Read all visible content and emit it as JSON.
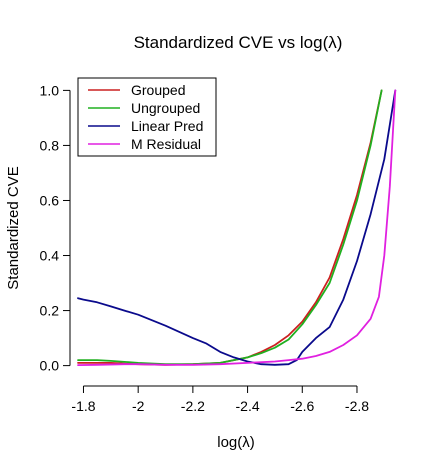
{
  "chart_data": {
    "type": "line",
    "title": "Standardized CVE vs log(λ)",
    "xlabel": "log(λ)",
    "ylabel": "Standardized CVE",
    "xlim": [
      -1.78,
      -2.95
    ],
    "ylim": [
      0,
      1
    ],
    "x_ticks": [
      -1.8,
      -2,
      -2.2,
      -2.4,
      -2.6,
      -2.8
    ],
    "x_tick_labels": [
      "-1.8",
      "-2",
      "-2.2",
      "-2.4",
      "-2.6",
      "-2.8"
    ],
    "y_ticks": [
      0,
      0.2,
      0.4,
      0.6,
      0.8,
      1.0
    ],
    "y_tick_labels": [
      "0.0",
      "0.2",
      "0.4",
      "0.6",
      "0.8",
      "1.0"
    ],
    "legend_position": "top-left",
    "grid": false,
    "series": [
      {
        "name": "Grouped",
        "color": "#cc2020",
        "x": [
          -1.78,
          -1.85,
          -1.9,
          -2.0,
          -2.1,
          -2.2,
          -2.3,
          -2.4,
          -2.45,
          -2.5,
          -2.55,
          -2.6,
          -2.65,
          -2.7,
          -2.75,
          -2.8,
          -2.85,
          -2.89
        ],
        "y": [
          0.01,
          0.01,
          0.01,
          0.005,
          0.003,
          0.005,
          0.01,
          0.03,
          0.05,
          0.075,
          0.11,
          0.16,
          0.23,
          0.32,
          0.46,
          0.62,
          0.81,
          1.0
        ]
      },
      {
        "name": "Ungrouped",
        "color": "#20b020",
        "x": [
          -1.78,
          -1.85,
          -1.9,
          -2.0,
          -2.1,
          -2.2,
          -2.3,
          -2.4,
          -2.45,
          -2.5,
          -2.55,
          -2.6,
          -2.65,
          -2.7,
          -2.75,
          -2.8,
          -2.85,
          -2.89
        ],
        "y": [
          0.02,
          0.02,
          0.017,
          0.01,
          0.005,
          0.005,
          0.01,
          0.03,
          0.045,
          0.065,
          0.095,
          0.15,
          0.22,
          0.3,
          0.44,
          0.6,
          0.8,
          1.0
        ]
      },
      {
        "name": "Linear Pred",
        "color": "#0a0a8c",
        "x": [
          -1.78,
          -1.8,
          -1.85,
          -1.9,
          -1.95,
          -2.0,
          -2.1,
          -2.2,
          -2.25,
          -2.3,
          -2.35,
          -2.4,
          -2.45,
          -2.5,
          -2.55,
          -2.58,
          -2.6,
          -2.65,
          -2.7,
          -2.75,
          -2.8,
          -2.85,
          -2.9,
          -2.94
        ],
        "y": [
          0.245,
          0.24,
          0.23,
          0.215,
          0.2,
          0.185,
          0.145,
          0.1,
          0.08,
          0.05,
          0.03,
          0.015,
          0.005,
          0.003,
          0.005,
          0.02,
          0.05,
          0.1,
          0.14,
          0.24,
          0.38,
          0.55,
          0.75,
          1.0
        ]
      },
      {
        "name": "M Residual",
        "color": "#e020e0",
        "x": [
          -1.78,
          -1.85,
          -1.95,
          -2.0,
          -2.1,
          -2.2,
          -2.3,
          -2.4,
          -2.5,
          -2.55,
          -2.6,
          -2.65,
          -2.7,
          -2.75,
          -2.8,
          -2.85,
          -2.88,
          -2.9,
          -2.92,
          -2.94
        ],
        "y": [
          0.002,
          0.003,
          0.005,
          0.005,
          0.003,
          0.003,
          0.005,
          0.01,
          0.015,
          0.02,
          0.025,
          0.035,
          0.05,
          0.075,
          0.11,
          0.17,
          0.25,
          0.4,
          0.65,
          1.0
        ]
      }
    ]
  }
}
